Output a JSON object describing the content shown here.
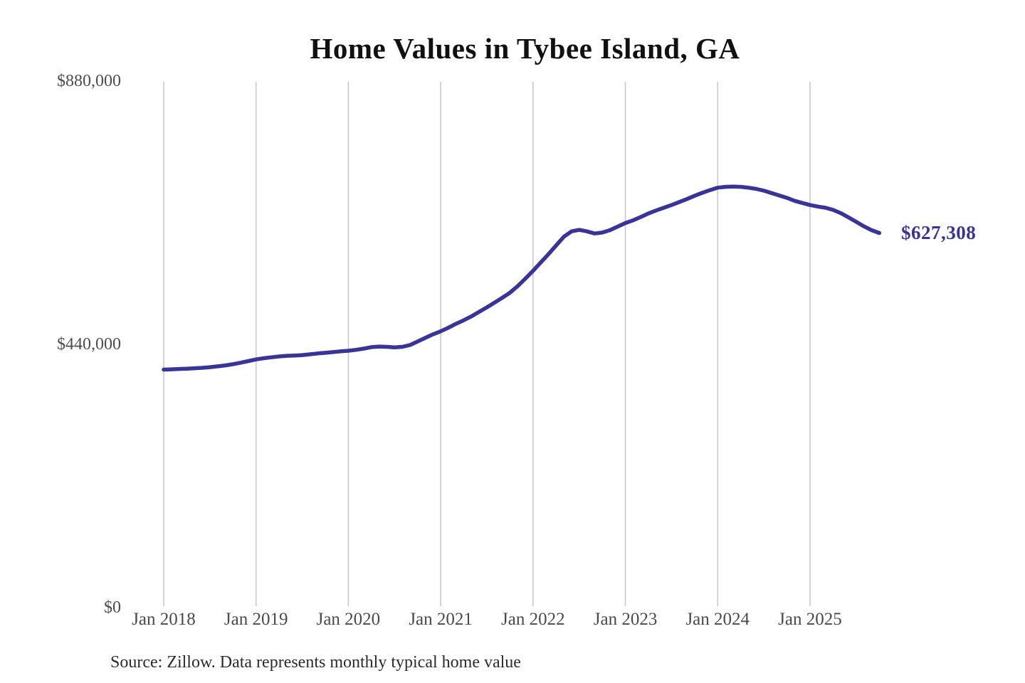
{
  "chart_data": {
    "type": "line",
    "title": "Home Values in Tybee Island, GA",
    "source_note": "Source: Zillow. Data represents monthly typical home value",
    "series_name": "Monthly typical home value",
    "end_label": "$627,308",
    "latest_value": 627308,
    "ylim": [
      0,
      880000
    ],
    "grid": "vertical-only",
    "legend": "none",
    "line_color": "#3b3497",
    "grid_color": "#c9c9c9",
    "y_ticks": [
      {
        "label": "$880,000",
        "value": 880000
      },
      {
        "label": "$440,000",
        "value": 440000
      },
      {
        "label": "$0",
        "value": 0
      }
    ],
    "x_ticks": [
      "Jan 2018",
      "Jan 2019",
      "Jan 2020",
      "Jan 2021",
      "Jan 2022",
      "Jan 2023",
      "Jan 2024",
      "Jan 2025"
    ],
    "months": [
      "2018-01",
      "2018-02",
      "2018-03",
      "2018-04",
      "2018-05",
      "2018-06",
      "2018-07",
      "2018-08",
      "2018-09",
      "2018-10",
      "2018-11",
      "2018-12",
      "2019-01",
      "2019-02",
      "2019-03",
      "2019-04",
      "2019-05",
      "2019-06",
      "2019-07",
      "2019-08",
      "2019-09",
      "2019-10",
      "2019-11",
      "2019-12",
      "2020-01",
      "2020-02",
      "2020-03",
      "2020-04",
      "2020-05",
      "2020-06",
      "2020-07",
      "2020-08",
      "2020-09",
      "2020-10",
      "2020-11",
      "2020-12",
      "2021-01",
      "2021-02",
      "2021-03",
      "2021-04",
      "2021-05",
      "2021-06",
      "2021-07",
      "2021-08",
      "2021-09",
      "2021-10",
      "2021-11",
      "2021-12",
      "2022-01",
      "2022-02",
      "2022-03",
      "2022-04",
      "2022-05",
      "2022-06",
      "2022-07",
      "2022-08",
      "2022-09",
      "2022-10",
      "2022-11",
      "2022-12",
      "2023-01",
      "2023-02",
      "2023-03",
      "2023-04",
      "2023-05",
      "2023-06",
      "2023-07",
      "2023-08",
      "2023-09",
      "2023-10",
      "2023-11",
      "2023-12",
      "2024-01",
      "2024-02",
      "2024-03",
      "2024-04",
      "2024-05",
      "2024-06",
      "2024-07",
      "2024-08",
      "2024-09",
      "2024-10",
      "2024-11",
      "2024-12",
      "2025-01",
      "2025-02",
      "2025-03",
      "2025-04",
      "2025-05",
      "2025-06",
      "2025-07",
      "2025-08",
      "2025-09",
      "2025-10"
    ],
    "values": [
      399000,
      399500,
      400000,
      400500,
      401200,
      402000,
      403000,
      404500,
      406000,
      408000,
      410500,
      413200,
      416000,
      418000,
      419500,
      421000,
      422000,
      422500,
      423200,
      424500,
      426000,
      427000,
      428200,
      429500,
      430500,
      432000,
      434000,
      436500,
      437500,
      437000,
      436200,
      437000,
      440000,
      446000,
      452000,
      458000,
      463000,
      469000,
      475500,
      481500,
      488000,
      495500,
      503000,
      511000,
      519000,
      527500,
      538500,
      551000,
      564000,
      578000,
      592000,
      606500,
      621000,
      630000,
      632500,
      630000,
      626500,
      628000,
      632000,
      638000,
      644000,
      648500,
      654000,
      660000,
      665000,
      669500,
      674000,
      679000,
      684000,
      689500,
      694500,
      699000,
      703000,
      704500,
      705000,
      704500,
      703000,
      701000,
      698000,
      694000,
      690000,
      686000,
      681000,
      677500,
      674000,
      671500,
      669500,
      666000,
      660500,
      653500,
      646000,
      638500,
      632000,
      627308
    ]
  }
}
